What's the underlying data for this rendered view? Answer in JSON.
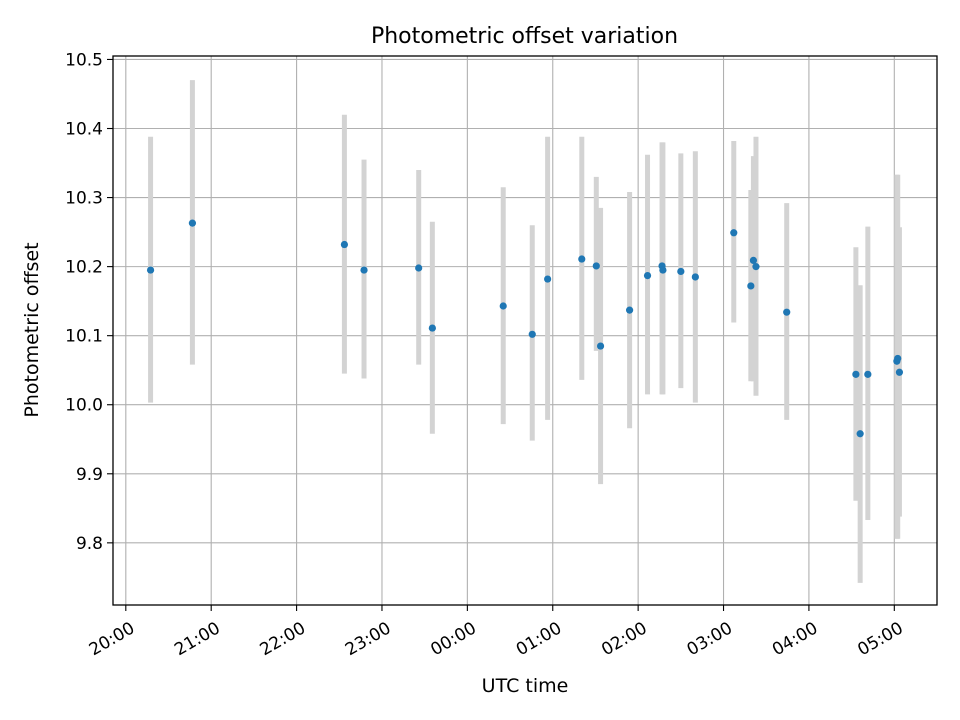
{
  "chart_data": {
    "type": "scatter",
    "title": "Photometric offset variation",
    "xlabel": "UTC time",
    "ylabel": "Photometric offset",
    "x_unit": "hours after 20:00 UTC",
    "xlim": [
      -0.15,
      9.5
    ],
    "ylim": [
      9.71,
      10.505
    ],
    "grid": true,
    "x_ticks": [
      {
        "value": 0,
        "label": "20:00"
      },
      {
        "value": 1,
        "label": "21:00"
      },
      {
        "value": 2,
        "label": "22:00"
      },
      {
        "value": 3,
        "label": "23:00"
      },
      {
        "value": 4,
        "label": "00:00"
      },
      {
        "value": 5,
        "label": "01:00"
      },
      {
        "value": 6,
        "label": "02:00"
      },
      {
        "value": 7,
        "label": "03:00"
      },
      {
        "value": 8,
        "label": "04:00"
      },
      {
        "value": 9,
        "label": "05:00"
      }
    ],
    "y_ticks": [
      {
        "value": 9.8,
        "label": "9.8"
      },
      {
        "value": 9.9,
        "label": "9.9"
      },
      {
        "value": 10.0,
        "label": "10.0"
      },
      {
        "value": 10.1,
        "label": "10.1"
      },
      {
        "value": 10.2,
        "label": "10.2"
      },
      {
        "value": 10.3,
        "label": "10.3"
      },
      {
        "value": 10.4,
        "label": "10.4"
      },
      {
        "value": 10.5,
        "label": "10.5"
      }
    ],
    "marker_color": "#1f77b4",
    "errorbar_color": "#d3d3d3",
    "points": [
      {
        "x": 0.29,
        "y": 10.195,
        "low": 10.003,
        "high": 10.388
      },
      {
        "x": 0.78,
        "y": 10.263,
        "low": 10.058,
        "high": 10.47
      },
      {
        "x": 2.56,
        "y": 10.232,
        "low": 10.045,
        "high": 10.42
      },
      {
        "x": 2.79,
        "y": 10.195,
        "low": 10.038,
        "high": 10.355
      },
      {
        "x": 3.43,
        "y": 10.198,
        "low": 10.058,
        "high": 10.34
      },
      {
        "x": 3.59,
        "y": 10.111,
        "low": 9.958,
        "high": 10.265
      },
      {
        "x": 4.42,
        "y": 10.143,
        "low": 9.972,
        "high": 10.315
      },
      {
        "x": 4.76,
        "y": 10.102,
        "low": 9.948,
        "high": 10.26
      },
      {
        "x": 4.94,
        "y": 10.182,
        "low": 9.978,
        "high": 10.388
      },
      {
        "x": 5.34,
        "y": 10.211,
        "low": 10.036,
        "high": 10.388
      },
      {
        "x": 5.51,
        "y": 10.201,
        "low": 10.078,
        "high": 10.33
      },
      {
        "x": 5.56,
        "y": 10.085,
        "low": 9.885,
        "high": 10.285
      },
      {
        "x": 5.9,
        "y": 10.137,
        "low": 9.966,
        "high": 10.308
      },
      {
        "x": 6.11,
        "y": 10.187,
        "low": 10.015,
        "high": 10.362
      },
      {
        "x": 6.28,
        "y": 10.201,
        "low": 10.015,
        "high": 10.38
      },
      {
        "x": 6.29,
        "y": 10.195,
        "low": 10.015,
        "high": 10.38
      },
      {
        "x": 6.5,
        "y": 10.193,
        "low": 10.024,
        "high": 10.364
      },
      {
        "x": 6.67,
        "y": 10.185,
        "low": 10.003,
        "high": 10.367
      },
      {
        "x": 7.12,
        "y": 10.249,
        "low": 10.119,
        "high": 10.382
      },
      {
        "x": 7.32,
        "y": 10.172,
        "low": 10.034,
        "high": 10.311
      },
      {
        "x": 7.35,
        "y": 10.209,
        "low": 10.034,
        "high": 10.36
      },
      {
        "x": 7.38,
        "y": 10.2,
        "low": 10.013,
        "high": 10.388
      },
      {
        "x": 7.74,
        "y": 10.134,
        "low": 9.978,
        "high": 10.292
      },
      {
        "x": 8.55,
        "y": 10.044,
        "low": 9.861,
        "high": 10.228
      },
      {
        "x": 8.6,
        "y": 9.958,
        "low": 9.742,
        "high": 10.173
      },
      {
        "x": 8.69,
        "y": 10.044,
        "low": 9.833,
        "high": 10.258
      },
      {
        "x": 9.03,
        "y": 10.063,
        "low": 9.806,
        "high": 10.333
      },
      {
        "x": 9.04,
        "y": 10.067,
        "low": 9.806,
        "high": 10.333
      },
      {
        "x": 9.06,
        "y": 10.047,
        "low": 9.838,
        "high": 10.257
      }
    ]
  }
}
